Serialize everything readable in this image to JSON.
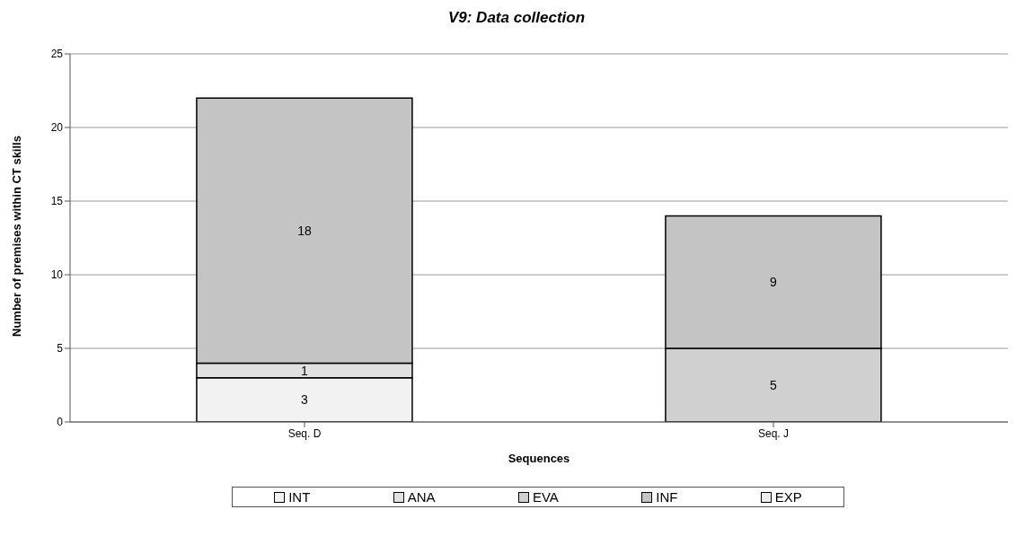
{
  "chart_data": {
    "type": "bar",
    "title": "V9: Data collection",
    "xlabel": "Sequences",
    "ylabel": "Number of premises within CT skills",
    "categories": [
      "Seq. D",
      "Seq. J"
    ],
    "stacked": true,
    "series": [
      {
        "name": "INT",
        "color": "#f2f2f2",
        "values": [
          3,
          null
        ]
      },
      {
        "name": "ANA",
        "color": "#e0e0e0",
        "values": [
          1,
          null
        ]
      },
      {
        "name": "EVA",
        "color": "#d0d0d0",
        "values": [
          null,
          5
        ]
      },
      {
        "name": "INF",
        "color": "#c4c4c4",
        "values": [
          18,
          9
        ]
      },
      {
        "name": "EXP",
        "color": "#ececec",
        "values": [
          null,
          null
        ]
      }
    ],
    "ylim": [
      0,
      25
    ],
    "yticks": [
      0,
      5,
      10,
      15,
      20,
      25
    ],
    "grid": "y",
    "legend": "bottom",
    "data_labels": true
  }
}
